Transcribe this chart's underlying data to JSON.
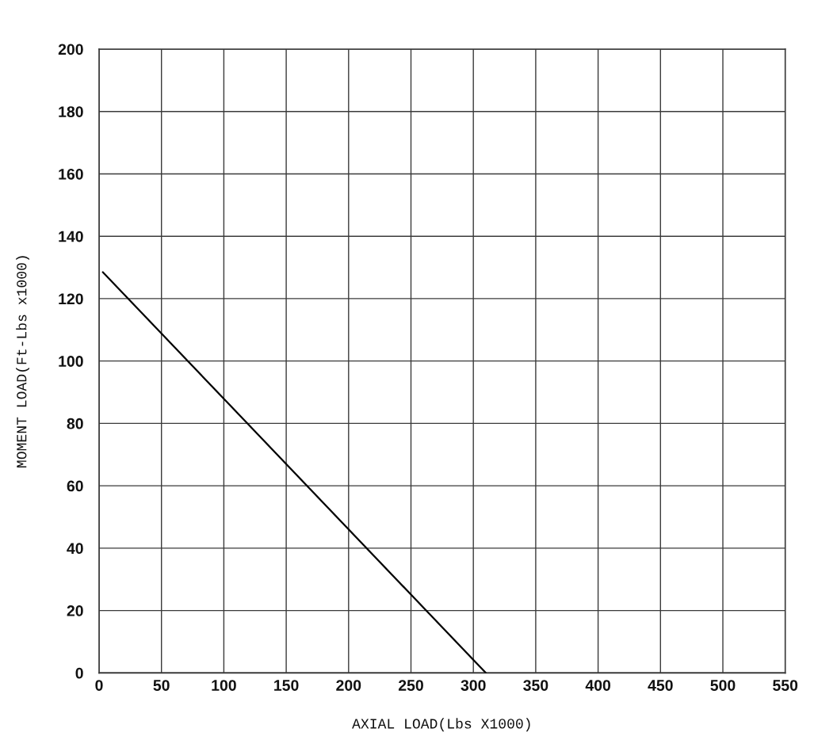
{
  "chart_data": {
    "type": "line",
    "xlabel": "AXIAL LOAD(Lbs X1000)",
    "ylabel": "MOMENT LOAD(Ft-Lbs x1000)",
    "x": [
      3,
      310
    ],
    "values": [
      128.5,
      0
    ],
    "color": "#000000",
    "line_style": "solid",
    "xlim": [
      0,
      550
    ],
    "ylim": [
      0,
      200
    ],
    "xticks": [
      0,
      50,
      100,
      150,
      200,
      250,
      300,
      350,
      400,
      450,
      500,
      550
    ],
    "yticks": [
      0,
      20,
      40,
      60,
      80,
      100,
      120,
      140,
      160,
      180,
      200
    ],
    "grid": true
  }
}
